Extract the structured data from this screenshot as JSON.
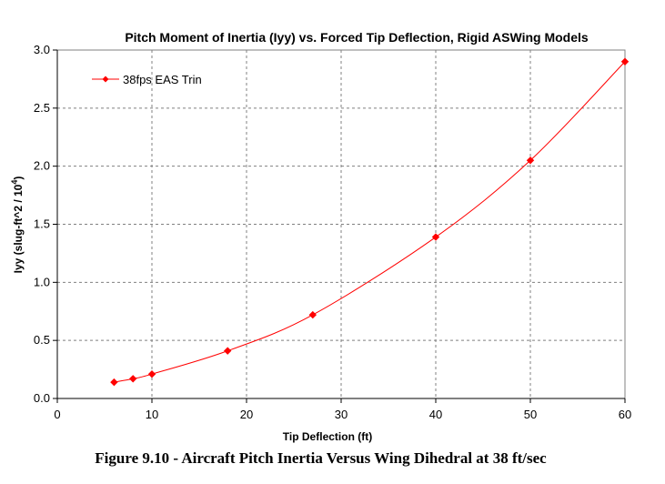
{
  "chart_data": {
    "type": "line",
    "title": "Pitch Moment of Inertia (Iyy) vs. Forced Tip Deflection, Rigid ASWing Models",
    "xlabel": "Tip Deflection (ft)",
    "ylabel": "Iyy (slug-ft^2 / 10⁴)",
    "xlim": [
      0,
      60
    ],
    "ylim": [
      0,
      3.0
    ],
    "x_ticks": [
      "0",
      "10",
      "20",
      "30",
      "40",
      "50",
      "60"
    ],
    "y_ticks": [
      "0.0",
      "0.5",
      "1.0",
      "1.5",
      "2.0",
      "2.5",
      "3.0"
    ],
    "grid": true,
    "legend_position": "top-left",
    "series": [
      {
        "name": "38fps EAS Trin",
        "color": "#ff0000",
        "x": [
          6,
          8,
          10,
          18,
          27,
          40,
          50,
          60
        ],
        "values": [
          0.14,
          0.17,
          0.21,
          0.41,
          0.72,
          1.39,
          2.05,
          2.9
        ]
      }
    ]
  },
  "caption": "Figure 9.10 - Aircraft Pitch Inertia Versus Wing Dihedral at 38 ft/sec"
}
